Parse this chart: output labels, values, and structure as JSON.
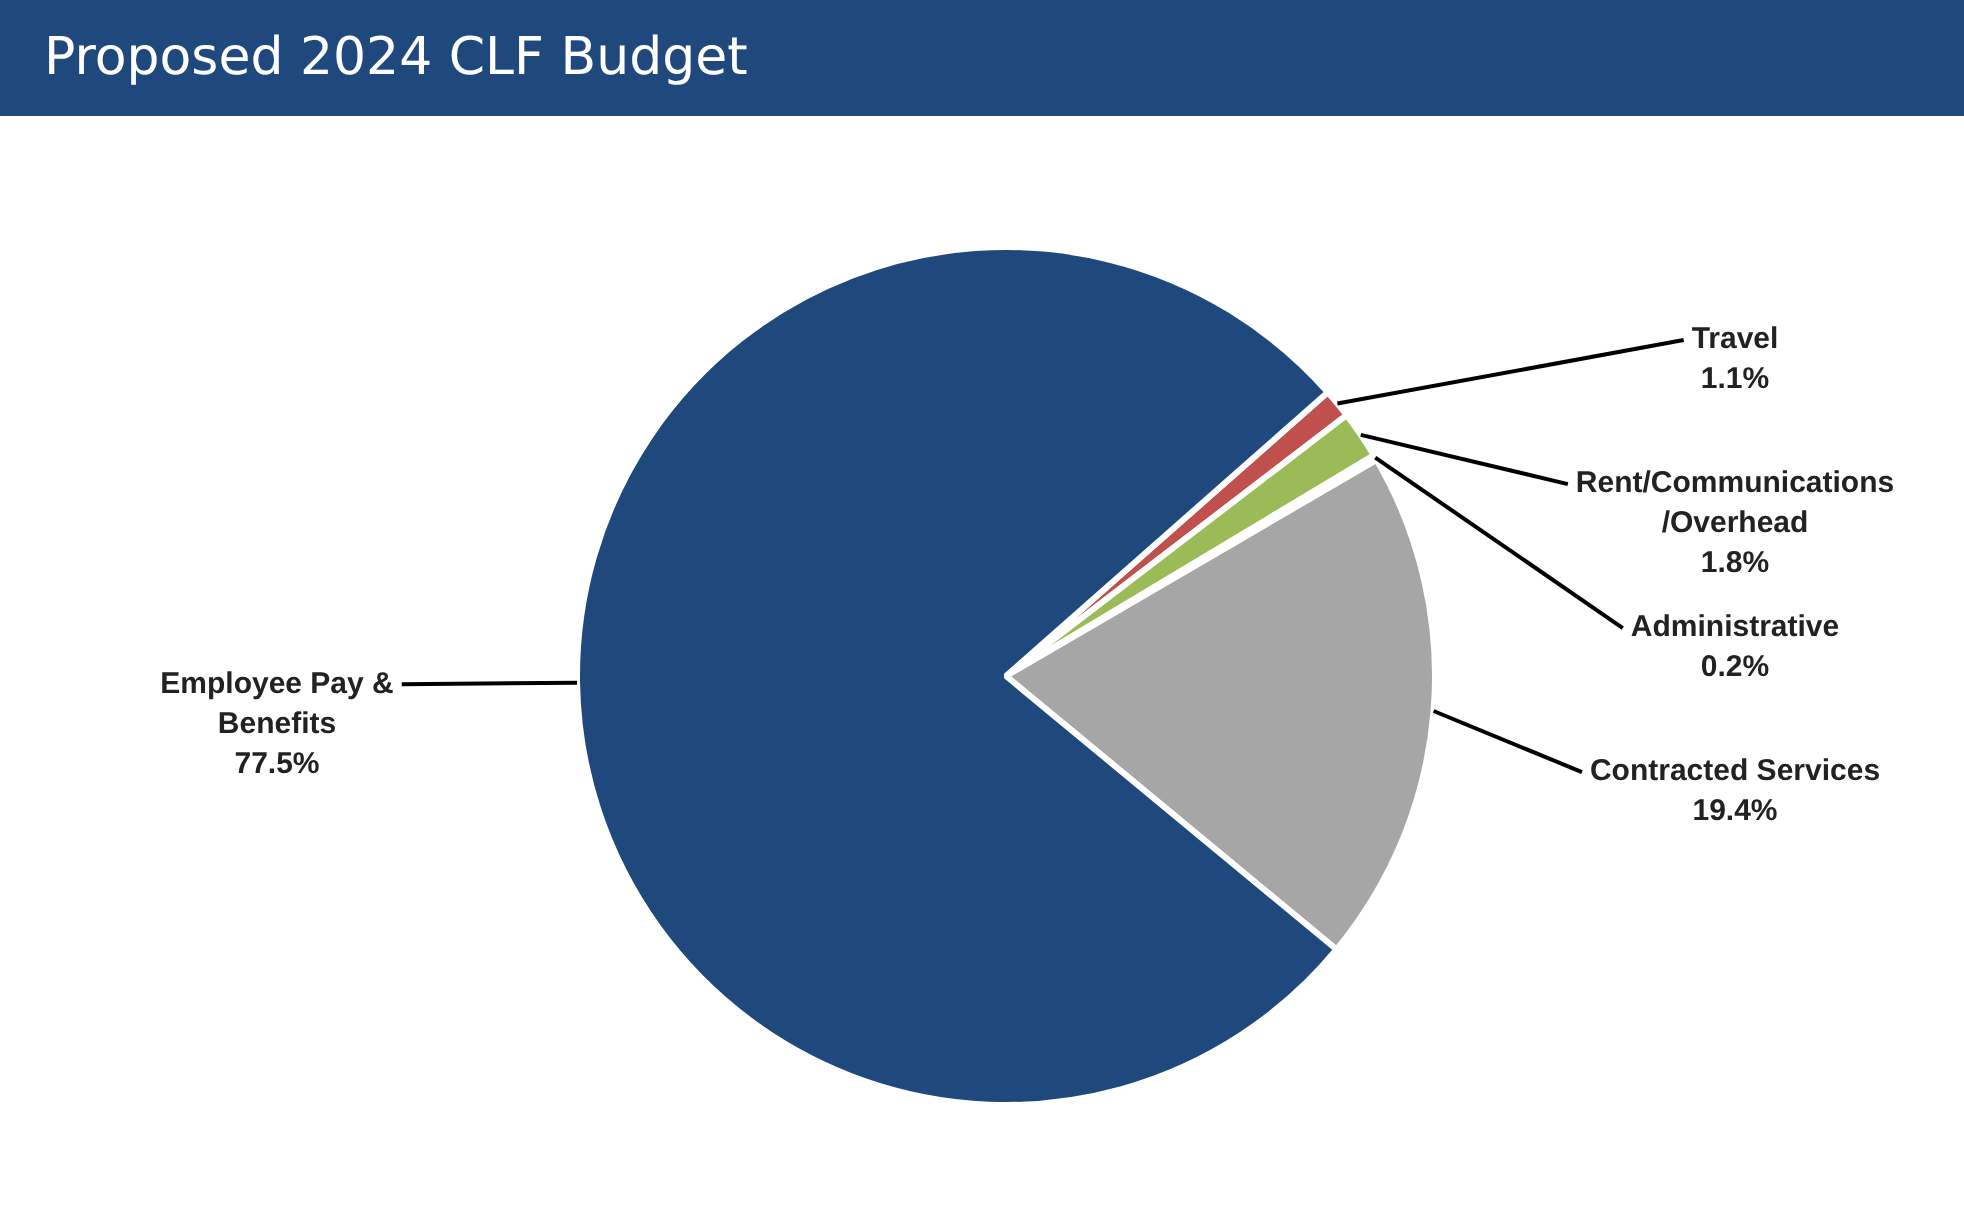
{
  "chart_data": {
    "type": "pie",
    "title": "Proposed 2024 CLF Budget",
    "categories": [
      "Travel",
      "Rent/Communications\n/Overhead",
      "Administrative",
      "Contracted Services",
      "Employee Pay &\nBenefits"
    ],
    "values": [
      1.1,
      1.8,
      0.2,
      19.4,
      77.5
    ],
    "colors": [
      "#c0504d",
      "#9bbb59",
      "#d9d9d9",
      "#a6a6a6",
      "#1f497d"
    ],
    "value_labels": [
      "1.1%",
      "1.8%",
      "0.2%",
      "19.4%",
      "77.5%"
    ],
    "legend": false
  }
}
